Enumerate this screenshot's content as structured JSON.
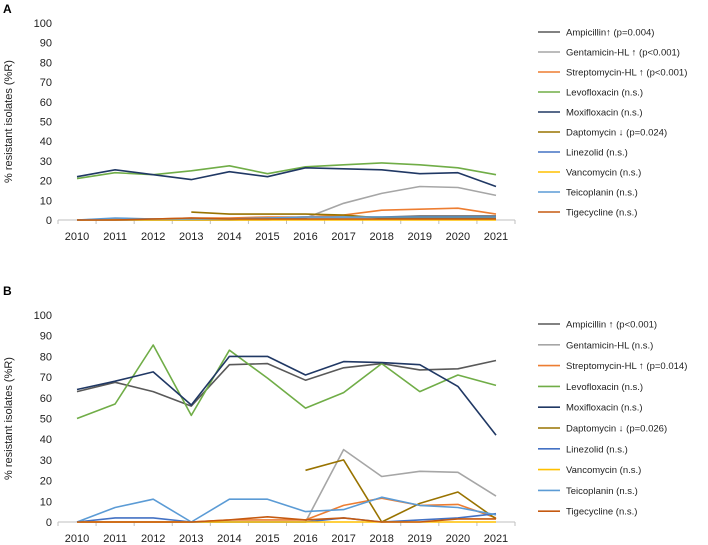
{
  "chart_data": [
    {
      "panel": "A",
      "type": "line",
      "ylabel": "% resistant isolates (%R)",
      "ylim": [
        0,
        100
      ],
      "yticks": [
        0,
        10,
        20,
        30,
        40,
        50,
        60,
        70,
        80,
        90,
        100
      ],
      "categories": [
        "2010",
        "2011",
        "2012",
        "2013",
        "2014",
        "2015",
        "2016",
        "2017",
        "2018",
        "2019",
        "2020",
        "2021"
      ],
      "legend_position": "right",
      "series": [
        {
          "name": "Ampicillin",
          "label": "Ampicillin↑ (p=0.004)",
          "color": "#595959",
          "values": [
            0,
            0.5,
            0.5,
            0.5,
            0.5,
            1,
            1.5,
            1.5,
            1.5,
            2,
            2,
            2
          ]
        },
        {
          "name": "Gentamicin-HL",
          "label": "Gentamicin-HL ↑ (p<0.001)",
          "color": "#a6a6a6",
          "values": [
            0,
            0,
            0,
            0,
            0,
            0,
            1,
            8.5,
            13.5,
            17,
            16.5,
            12.5
          ]
        },
        {
          "name": "Streptomycin-HL",
          "label": "Streptomycin-HL ↑ (p<0.001)",
          "color": "#ed7d31",
          "values": [
            0,
            0.5,
            0.5,
            1,
            1,
            1.5,
            1.5,
            2.5,
            5,
            5.5,
            6,
            3
          ]
        },
        {
          "name": "Levofloxacin",
          "label": "Levofloxacin (n.s.)",
          "color": "#70ad47",
          "values": [
            21,
            24,
            23,
            25,
            27.5,
            23.5,
            27,
            28,
            29,
            28,
            26.5,
            23
          ]
        },
        {
          "name": "Moxifloxacin",
          "label": "Moxifloxacin (n.s.)",
          "color": "#203864",
          "values": [
            22,
            25.5,
            23,
            20.5,
            24.5,
            22,
            26.5,
            26,
            25.5,
            23.5,
            24,
            17
          ]
        },
        {
          "name": "Daptomycin",
          "label": "Daptomycin ↓ (p=0.024)",
          "color": "#997300",
          "values": [
            null,
            null,
            null,
            4,
            3,
            3,
            3,
            2.5,
            1,
            1,
            1,
            1
          ]
        },
        {
          "name": "Linezolid",
          "label": "Linezolid (n.s.)",
          "color": "#4472c4",
          "values": [
            0,
            0,
            0,
            0,
            0,
            0.5,
            0.5,
            0.5,
            0.5,
            0.5,
            0.5,
            0.5
          ]
        },
        {
          "name": "Vancomycin",
          "label": "Vancomycin (n.s.)",
          "color": "#ffc000",
          "values": [
            0,
            0,
            0,
            0,
            0,
            0,
            0,
            0,
            0,
            0,
            0,
            0
          ]
        },
        {
          "name": "Teicoplanin",
          "label": "Teicoplanin (n.s.)",
          "color": "#5b9bd5",
          "values": [
            0,
            1,
            0.5,
            0.5,
            0.5,
            1,
            1.5,
            1.5,
            1.5,
            1.5,
            1.5,
            1.5
          ]
        },
        {
          "name": "Tigecycline",
          "label": "Tigecycline (n.s.)",
          "color": "#c55a11",
          "values": [
            0,
            0,
            0.5,
            1,
            0.5,
            0.5,
            0.5,
            0.5,
            0.5,
            0.5,
            0.5,
            0.5
          ]
        }
      ]
    },
    {
      "panel": "B",
      "type": "line",
      "ylabel": "% resistant isolates (%R)",
      "ylim": [
        0,
        100
      ],
      "yticks": [
        0,
        10,
        20,
        30,
        40,
        50,
        60,
        70,
        80,
        90,
        100
      ],
      "categories": [
        "2010",
        "2011",
        "2012",
        "2013",
        "2014",
        "2015",
        "2016",
        "2017",
        "2018",
        "2019",
        "2020",
        "2021"
      ],
      "legend_position": "right",
      "series": [
        {
          "name": "Ampicillin",
          "label": "Ampicillin ↑ (p<0.001)",
          "color": "#595959",
          "values": [
            63,
            67.5,
            63,
            56,
            76,
            76.5,
            68.5,
            74.5,
            76.5,
            73.5,
            74,
            78
          ]
        },
        {
          "name": "Gentamicin-HL",
          "label": "Gentamicin-HL (n.s.)",
          "color": "#a6a6a6",
          "values": [
            0,
            0,
            0,
            0,
            0,
            0,
            0,
            35,
            22,
            24.5,
            24,
            12.5
          ]
        },
        {
          "name": "Streptomycin-HL",
          "label": "Streptomycin-HL ↑ (p=0.014)",
          "color": "#ed7d31",
          "values": [
            0,
            0,
            0,
            0,
            1,
            1,
            1,
            8,
            11.5,
            8,
            8.5,
            2
          ]
        },
        {
          "name": "Levofloxacin",
          "label": "Levofloxacin (n.s.)",
          "color": "#70ad47",
          "values": [
            50,
            57,
            85.5,
            51.5,
            83,
            69.5,
            55,
            62.5,
            76.5,
            63,
            71,
            66
          ]
        },
        {
          "name": "Moxifloxacin",
          "label": "Moxifloxacin (n.s.)",
          "color": "#203864",
          "values": [
            64,
            68,
            72.5,
            56.5,
            80,
            80,
            71,
            77.5,
            77,
            76,
            65.5,
            42
          ]
        },
        {
          "name": "Daptomycin",
          "label": "Daptomycin ↓ (p=0.026)",
          "color": "#997300",
          "values": [
            null,
            null,
            null,
            null,
            null,
            null,
            25,
            30,
            0,
            9,
            14.5,
            1.5
          ]
        },
        {
          "name": "Linezolid",
          "label": "Linezolid (n.s.)",
          "color": "#4472c4",
          "values": [
            0,
            2,
            2,
            0,
            0,
            0,
            0,
            2,
            0,
            1,
            2,
            4
          ]
        },
        {
          "name": "Vancomycin",
          "label": "Vancomycin (n.s.)",
          "color": "#ffc000",
          "values": [
            0,
            0,
            0,
            0,
            0,
            0,
            0,
            0,
            0,
            0,
            0,
            0
          ]
        },
        {
          "name": "Teicoplanin",
          "label": "Teicoplanin (n.s.)",
          "color": "#5b9bd5",
          "values": [
            0,
            7,
            11,
            0,
            11,
            11,
            5,
            6,
            12,
            8,
            7,
            3.5
          ]
        },
        {
          "name": "Tigecycline",
          "label": "Tigecycline (n.s.)",
          "color": "#c55a11",
          "values": [
            0,
            0,
            0,
            0,
            1,
            2.5,
            1,
            2,
            0,
            0,
            1.5,
            1.5
          ]
        }
      ]
    }
  ]
}
